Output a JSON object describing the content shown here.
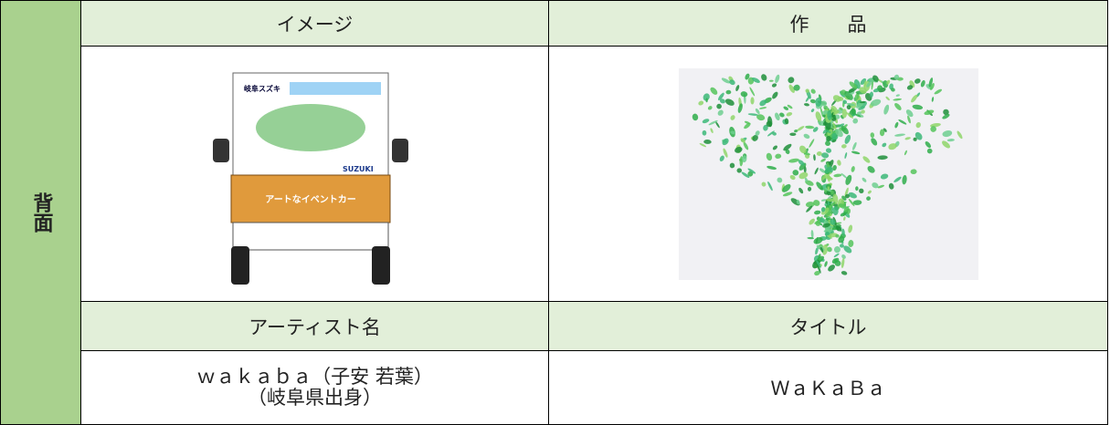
{
  "side_label": "背面",
  "headers": {
    "image": "イメージ",
    "work": "作　　品",
    "artist": "アーティスト名",
    "title": "タイトル"
  },
  "truck_texts": {
    "brand": "岐阜スズキ",
    "banner": "アートなイベントカー",
    "maker": "SUZUKI"
  },
  "artist": {
    "name": "ｗａｋａｂａ（子安 若葉）",
    "origin": "（岐阜県出身）"
  },
  "title": "ＷａＫａＢａ"
}
